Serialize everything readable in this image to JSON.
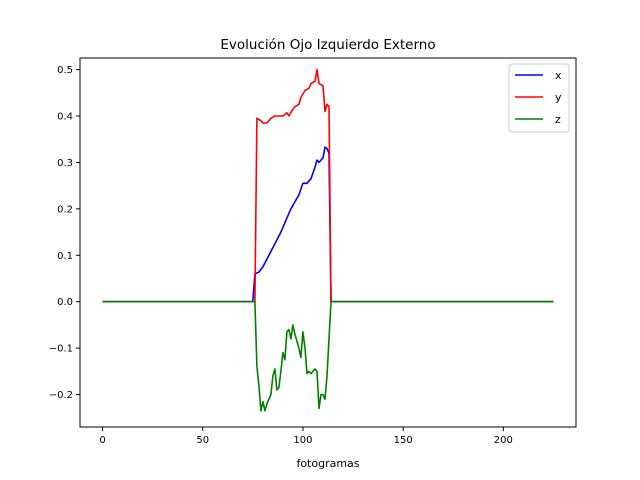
{
  "chart_data": {
    "type": "line",
    "title": "Evolución Ojo Izquierdo Externo",
    "xlabel": "fotogramas",
    "ylabel": "",
    "xlim": [
      -11.25,
      236.25
    ],
    "ylim": [
      -0.27,
      0.525
    ],
    "xticks": [
      0,
      50,
      100,
      150,
      200
    ],
    "yticks": [
      -0.2,
      -0.1,
      0.0,
      0.1,
      0.2,
      0.3,
      0.4,
      0.5
    ],
    "ytick_labels": [
      "−0.2",
      "−0.1",
      "0.0",
      "0.1",
      "0.2",
      "0.3",
      "0.4",
      "0.5"
    ],
    "grid": false,
    "legend_position": "top-right",
    "series": [
      {
        "name": "x",
        "color": "#0000ff",
        "points": [
          [
            0,
            0
          ],
          [
            75,
            0
          ],
          [
            76,
            0.06
          ],
          [
            78,
            0.064
          ],
          [
            80,
            0.075
          ],
          [
            83,
            0.1
          ],
          [
            86,
            0.125
          ],
          [
            89,
            0.15
          ],
          [
            92,
            0.18
          ],
          [
            94,
            0.2
          ],
          [
            96,
            0.215
          ],
          [
            98,
            0.23
          ],
          [
            100,
            0.255
          ],
          [
            102,
            0.255
          ],
          [
            104,
            0.265
          ],
          [
            106,
            0.29
          ],
          [
            107,
            0.305
          ],
          [
            108,
            0.3
          ],
          [
            110,
            0.31
          ],
          [
            111,
            0.333
          ],
          [
            112,
            0.33
          ],
          [
            113,
            0.32
          ],
          [
            114,
            0
          ],
          [
            225,
            0
          ]
        ]
      },
      {
        "name": "y",
        "color": "#ff0000",
        "points": [
          [
            0,
            0
          ],
          [
            76,
            0
          ],
          [
            77,
            0.395
          ],
          [
            79,
            0.39
          ],
          [
            80,
            0.385
          ],
          [
            82,
            0.385
          ],
          [
            84,
            0.395
          ],
          [
            86,
            0.4
          ],
          [
            88,
            0.4
          ],
          [
            90,
            0.4
          ],
          [
            92,
            0.407
          ],
          [
            93,
            0.4
          ],
          [
            95,
            0.415
          ],
          [
            96,
            0.42
          ],
          [
            98,
            0.425
          ],
          [
            99,
            0.44
          ],
          [
            101,
            0.455
          ],
          [
            103,
            0.46
          ],
          [
            104,
            0.47
          ],
          [
            106,
            0.475
          ],
          [
            107,
            0.5
          ],
          [
            108,
            0.47
          ],
          [
            110,
            0.465
          ],
          [
            111,
            0.41
          ],
          [
            112,
            0.425
          ],
          [
            113,
            0.42
          ],
          [
            114,
            0
          ],
          [
            225,
            0
          ]
        ]
      },
      {
        "name": "z",
        "color": "#008000",
        "points": [
          [
            0,
            0
          ],
          [
            76,
            0
          ],
          [
            77,
            -0.14
          ],
          [
            78,
            -0.18
          ],
          [
            79,
            -0.235
          ],
          [
            80,
            -0.215
          ],
          [
            81,
            -0.235
          ],
          [
            82,
            -0.22
          ],
          [
            84,
            -0.2
          ],
          [
            85,
            -0.16
          ],
          [
            86,
            -0.145
          ],
          [
            87,
            -0.19
          ],
          [
            88,
            -0.185
          ],
          [
            89,
            -0.15
          ],
          [
            90,
            -0.11
          ],
          [
            91,
            -0.125
          ],
          [
            92,
            -0.065
          ],
          [
            93,
            -0.06
          ],
          [
            94,
            -0.08
          ],
          [
            95,
            -0.05
          ],
          [
            96,
            -0.07
          ],
          [
            97,
            -0.085
          ],
          [
            98,
            -0.1
          ],
          [
            99,
            -0.12
          ],
          [
            100,
            -0.065
          ],
          [
            101,
            -0.1
          ],
          [
            102,
            -0.155
          ],
          [
            103,
            -0.15
          ],
          [
            104,
            -0.155
          ],
          [
            106,
            -0.145
          ],
          [
            107,
            -0.15
          ],
          [
            108,
            -0.23
          ],
          [
            109,
            -0.2
          ],
          [
            110,
            -0.2
          ],
          [
            111,
            -0.21
          ],
          [
            112,
            -0.16
          ],
          [
            113,
            -0.08
          ],
          [
            114,
            0
          ],
          [
            225,
            0
          ]
        ]
      }
    ]
  }
}
